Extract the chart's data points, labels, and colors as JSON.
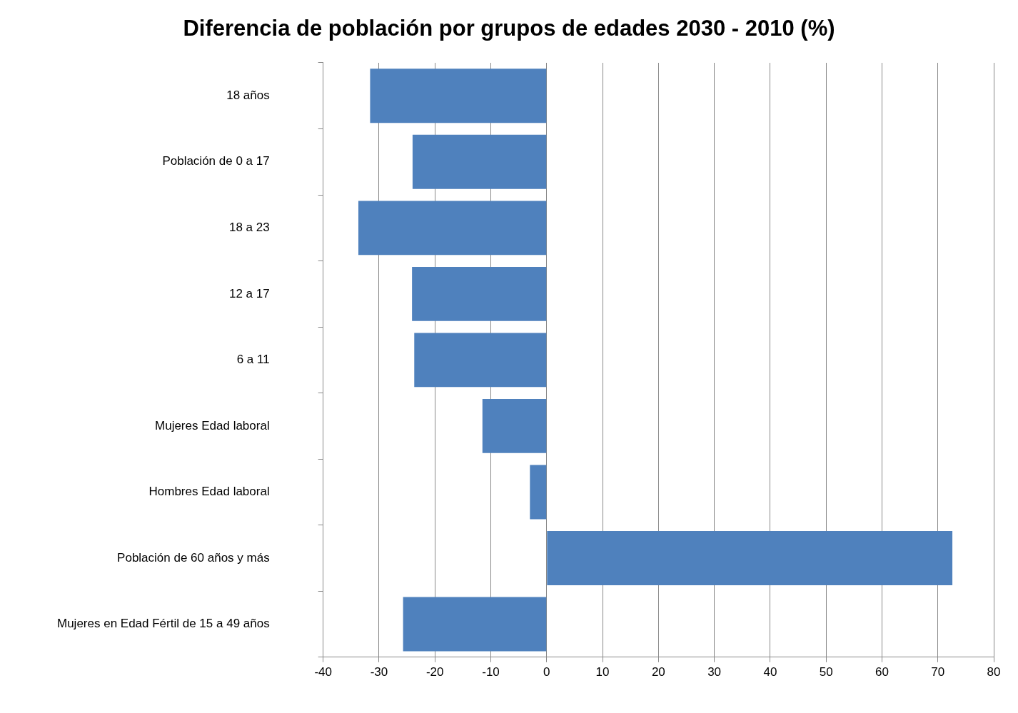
{
  "chart_data": {
    "type": "bar",
    "orientation": "horizontal",
    "title": "Diferencia de población por grupos de edades 2030 - 2010 (%)",
    "categories": [
      "18 años",
      "Población de 0 a 17",
      "18 a 23",
      "12 a 17",
      "6 a 11",
      "Mujeres Edad laboral",
      "Hombres Edad laboral",
      "Población de 60 años y más",
      "Mujeres en Edad Fértil de 15 a 49 años"
    ],
    "values": [
      -31.6,
      -24.0,
      -33.7,
      -24.1,
      -23.7,
      -11.5,
      -3.0,
      72.6,
      -25.7
    ],
    "color": "#4f81bd",
    "xlim": [
      -40,
      80
    ],
    "xticks": [
      -40,
      -30,
      -20,
      -10,
      0,
      10,
      20,
      30,
      40,
      50,
      60,
      70,
      80
    ],
    "grid": "x",
    "legend": false
  }
}
